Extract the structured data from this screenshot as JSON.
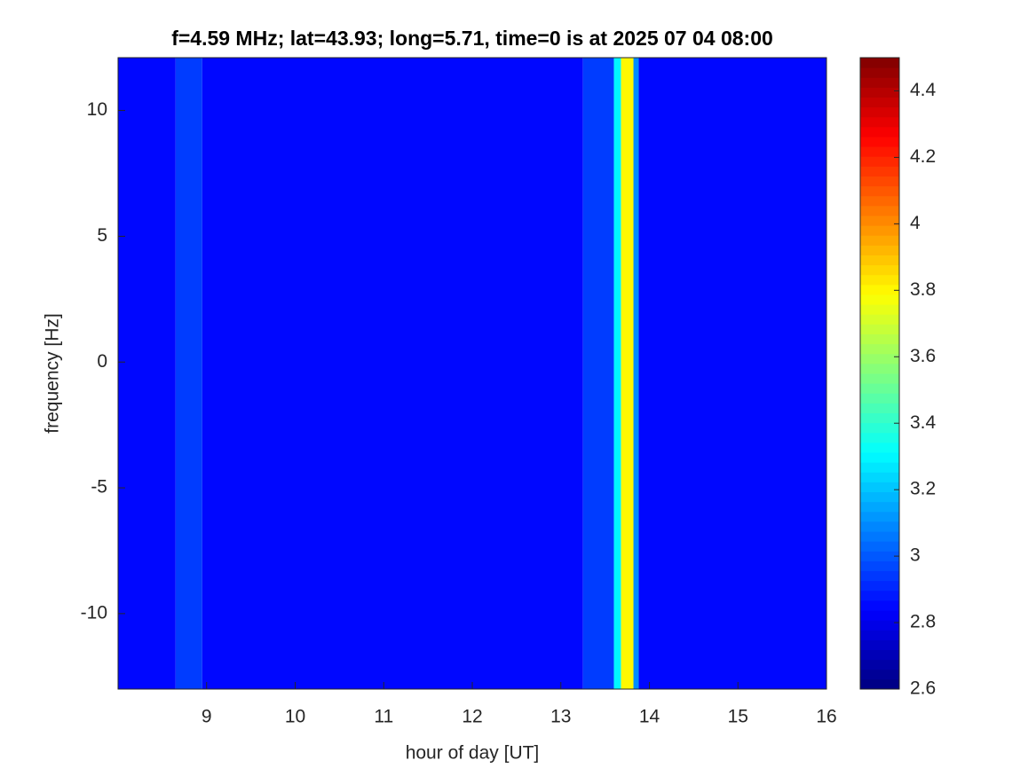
{
  "chart_data": {
    "type": "heatmap",
    "title": "f=4.59 MHz;  lat=43.93; long=5.71, time=0 is at 2025 07 04 08:00",
    "x_label": "hour of day [UT]",
    "y_label": "frequency [Hz]",
    "xlim": [
      8,
      16
    ],
    "xticks": [
      9,
      10,
      11,
      12,
      13,
      14,
      15,
      16
    ],
    "ylim": [
      -13,
      12.1
    ],
    "yticks": [
      -10,
      -5,
      0,
      5,
      10
    ],
    "x_bins": [
      8,
      8.65,
      8.95,
      13.25,
      13.6,
      13.68,
      13.82,
      13.88,
      16
    ],
    "values": [
      2.85,
      2.95,
      2.85,
      2.95,
      3.3,
      3.8,
      3.1,
      2.85
    ],
    "colormap": "jet",
    "colorbar_lim": [
      2.6,
      4.5
    ],
    "colorbar_ticks": [
      2.6,
      2.8,
      3,
      3.2,
      3.4,
      3.6,
      3.8,
      4,
      4.2,
      4.4
    ]
  }
}
